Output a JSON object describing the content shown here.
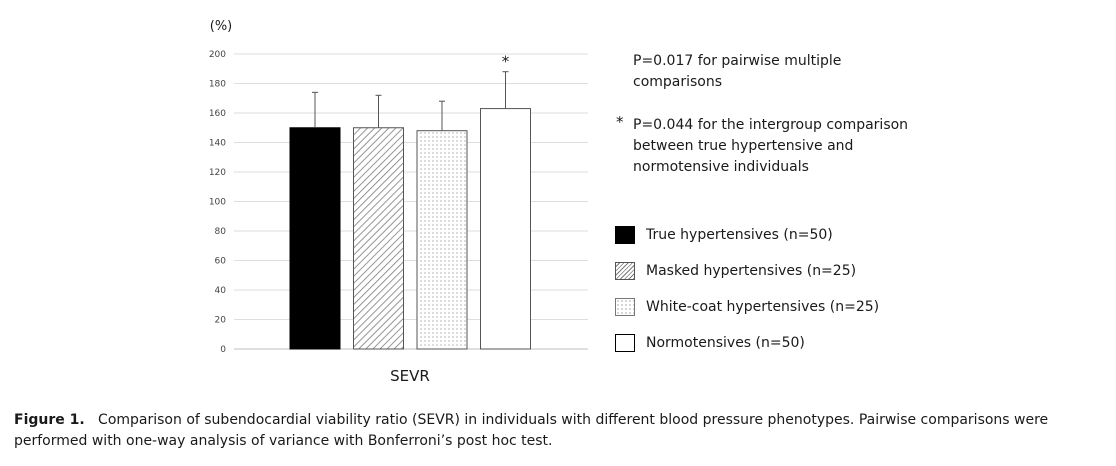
{
  "chart_data": {
    "type": "bar",
    "ylabel": "(%)",
    "ylim": [
      0,
      200
    ],
    "yticks": [
      0,
      20,
      40,
      60,
      80,
      100,
      120,
      140,
      160,
      180,
      200
    ],
    "grid": true,
    "categories": [
      "SEVR"
    ],
    "series": [
      {
        "name": "True hypertensives (n=50)",
        "values": [
          150
        ],
        "error": [
          24
        ],
        "fill": "solid",
        "color": "#000000"
      },
      {
        "name": "Masked hypertensives (n=25)",
        "values": [
          150
        ],
        "error": [
          22
        ],
        "fill": "hatch",
        "color": "#666666"
      },
      {
        "name": "White-coat hypertensives (n=25)",
        "values": [
          148
        ],
        "error": [
          20
        ],
        "fill": "dots",
        "color": "#555555"
      },
      {
        "name": "Normotensives (n=50)",
        "values": [
          163
        ],
        "error": [
          25
        ],
        "fill": "empty",
        "color": "#000000"
      }
    ],
    "significance_marker": {
      "series_index": 3,
      "symbol": "*"
    },
    "legend": {
      "position": "right"
    }
  },
  "notes": {
    "pairwise": [
      "P=0.017 for pairwise multiple",
      "comparisons"
    ],
    "intergroup_symbol": "*",
    "intergroup": [
      "P=0.044 for the intergroup comparison",
      "between true hypertensive and",
      "normotensive individuals"
    ]
  },
  "caption": {
    "label": "Figure 1.",
    "text": "Comparison of subendocardial viability ratio (SEVR) in individuals with different blood pressure phenotypes. Pairwise comparisons were performed with one-way analysis of variance with Bonferroni’s post hoc test."
  }
}
